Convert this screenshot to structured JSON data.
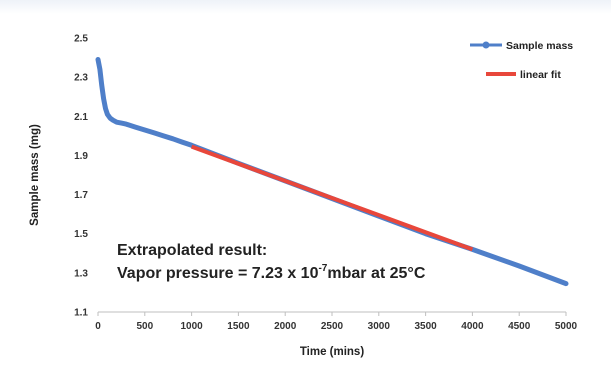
{
  "chart_data": {
    "type": "line",
    "title": "",
    "xlabel": "Time (mins)",
    "ylabel": "Sample mass (mg)",
    "xlim": [
      0,
      5000
    ],
    "ylim": [
      1.1,
      2.5
    ],
    "x_ticks": [
      0,
      500,
      1000,
      1500,
      2000,
      2500,
      3000,
      3500,
      4000,
      4500,
      5000
    ],
    "y_ticks": [
      "1.1",
      "1.3",
      "1.5",
      "1.7",
      "1.9",
      "2.1",
      "2.3",
      "2.5"
    ],
    "grid": false,
    "legend_position": "top-right",
    "series": [
      {
        "name": "Sample mass",
        "color": "#4f7fc9",
        "x": [
          0,
          20,
          40,
          60,
          80,
          100,
          130,
          160,
          200,
          250,
          300,
          400,
          500,
          600,
          700,
          800,
          900,
          1000,
          1500,
          2000,
          2500,
          3000,
          3500,
          4000,
          4500,
          5000
        ],
        "values": [
          2.39,
          2.34,
          2.26,
          2.19,
          2.14,
          2.11,
          2.09,
          2.08,
          2.07,
          2.065,
          2.06,
          2.045,
          2.03,
          2.015,
          2.0,
          1.985,
          1.968,
          1.952,
          1.86,
          1.77,
          1.68,
          1.59,
          1.5,
          1.42,
          1.335,
          1.245
        ]
      },
      {
        "name": "linear fit",
        "color": "#e8473b",
        "x": [
          1000,
          4000
        ],
        "values": [
          1.945,
          1.42
        ]
      }
    ],
    "annotation": {
      "line1": "Extrapolated result:",
      "line2_prefix": "Vapor pressure = 7.23 x 10",
      "line2_sup": "-7",
      "line2_suffix": "mbar at 25°C"
    }
  }
}
